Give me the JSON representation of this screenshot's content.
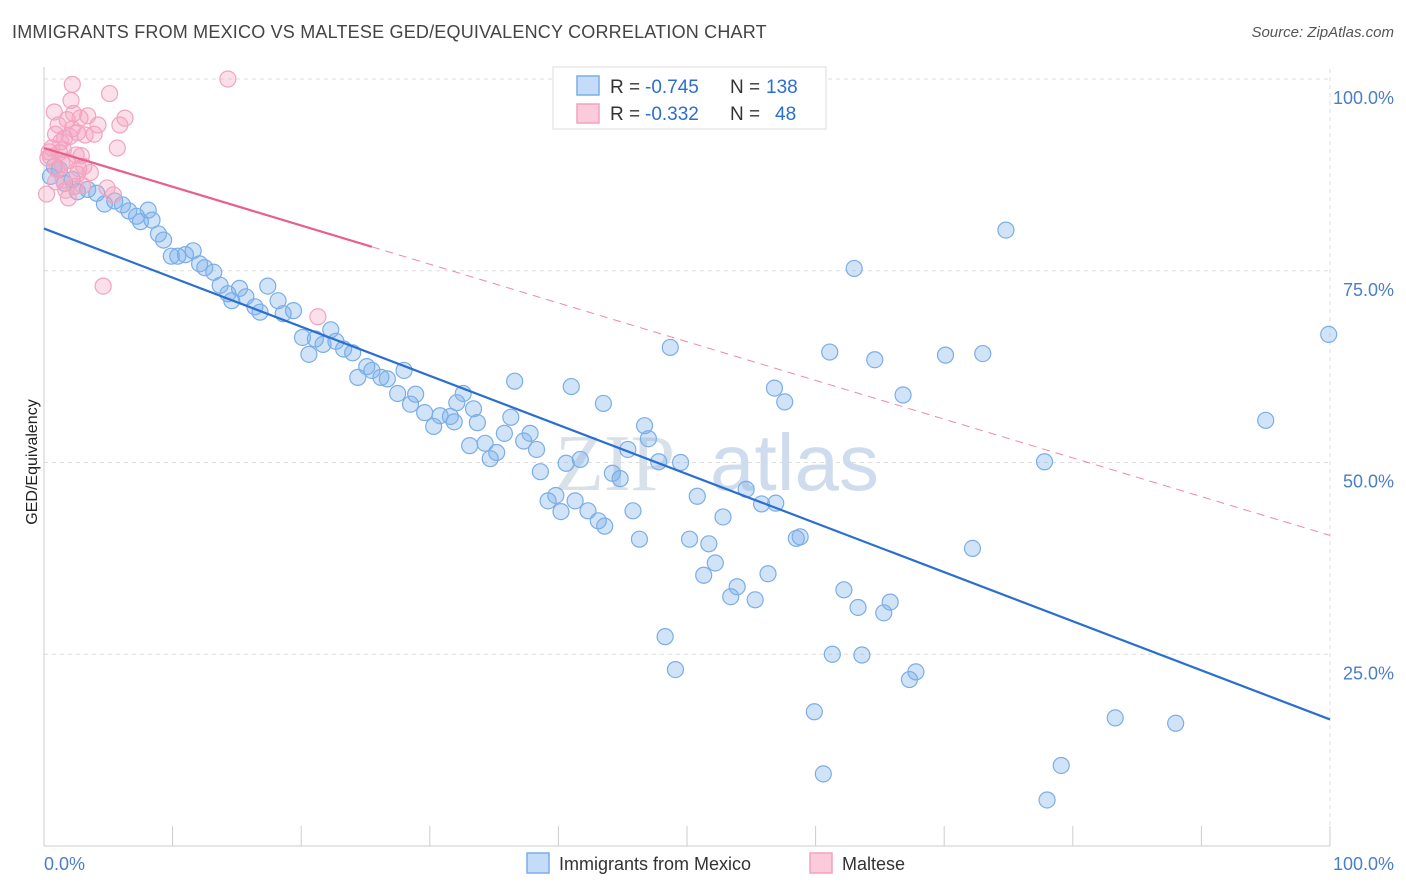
{
  "header": {
    "title": "IMMIGRANTS FROM MEXICO VS MALTESE GED/EQUIVALENCY CORRELATION CHART",
    "source": "Source: ZipAtlas.com"
  },
  "watermark": {
    "part1": "ZIP",
    "part2": "atlas"
  },
  "stats": [
    {
      "r_label": "R = ",
      "r_value": "-0.745",
      "n_label": "N = ",
      "n_value": "138"
    },
    {
      "r_label": "R = ",
      "r_value": "-0.332",
      "n_label": "N = ",
      "n_value": "48"
    }
  ],
  "chart_data": {
    "type": "scatter",
    "title": "IMMIGRANTS FROM MEXICO VS MALTESE GED/EQUIVALENCY CORRELATION CHART",
    "xlabel": "",
    "ylabel": "GED/Equivalency",
    "xlim": [
      0,
      100
    ],
    "ylim": [
      0,
      100
    ],
    "x_tick_labels": [
      "0.0%",
      "100.0%"
    ],
    "y_ticks": [
      25,
      50,
      75,
      100
    ],
    "y_tick_labels": [
      "25.0%",
      "50.0%",
      "75.0%",
      "100.0%"
    ],
    "grid": true,
    "legend_position": "bottom-center",
    "series": [
      {
        "name": "Immigrants from Mexico",
        "color": "#7aaee8",
        "line_color": "#2a6fd0",
        "trend": {
          "x0": 0,
          "y0": 80.5,
          "x1": 100,
          "y1": 16.5,
          "dashed_from": null
        },
        "points": [
          [
            0.5,
            87.3
          ],
          [
            0.8,
            88.6
          ],
          [
            1.2,
            88.2
          ],
          [
            1.6,
            86.4
          ],
          [
            2.2,
            86.9
          ],
          [
            2.6,
            85.3
          ],
          [
            3.4,
            85.6
          ],
          [
            4.1,
            85.1
          ],
          [
            4.7,
            83.7
          ],
          [
            5.5,
            84.1
          ],
          [
            6.1,
            83.6
          ],
          [
            6.6,
            82.8
          ],
          [
            7.2,
            82.1
          ],
          [
            7.5,
            81.4
          ],
          [
            8.1,
            82.9
          ],
          [
            8.4,
            81.6
          ],
          [
            8.9,
            79.8
          ],
          [
            9.3,
            79.0
          ],
          [
            9.9,
            76.9
          ],
          [
            10.4,
            76.9
          ],
          [
            11.0,
            77.1
          ],
          [
            11.6,
            77.6
          ],
          [
            12.1,
            75.9
          ],
          [
            12.5,
            75.4
          ],
          [
            13.2,
            74.8
          ],
          [
            13.7,
            73.1
          ],
          [
            14.3,
            72.0
          ],
          [
            14.6,
            71.1
          ],
          [
            15.2,
            72.7
          ],
          [
            15.7,
            71.6
          ],
          [
            16.4,
            70.3
          ],
          [
            16.8,
            69.6
          ],
          [
            17.4,
            73.0
          ],
          [
            18.2,
            71.1
          ],
          [
            18.6,
            69.4
          ],
          [
            19.4,
            69.8
          ],
          [
            20.1,
            66.3
          ],
          [
            20.6,
            64.1
          ],
          [
            21.1,
            66.1
          ],
          [
            21.7,
            65.4
          ],
          [
            22.3,
            67.3
          ],
          [
            22.7,
            65.8
          ],
          [
            23.3,
            64.8
          ],
          [
            24.0,
            64.3
          ],
          [
            24.4,
            61.1
          ],
          [
            25.1,
            62.5
          ],
          [
            25.5,
            62.0
          ],
          [
            26.2,
            61.1
          ],
          [
            26.7,
            60.9
          ],
          [
            27.5,
            59.0
          ],
          [
            28.0,
            62.0
          ],
          [
            28.5,
            57.6
          ],
          [
            28.9,
            58.9
          ],
          [
            29.6,
            56.5
          ],
          [
            30.3,
            54.7
          ],
          [
            30.8,
            56.1
          ],
          [
            31.6,
            56.0
          ],
          [
            32.1,
            57.8
          ],
          [
            32.6,
            59.0
          ],
          [
            33.1,
            52.2
          ],
          [
            33.7,
            55.2
          ],
          [
            34.3,
            52.5
          ],
          [
            35.2,
            51.3
          ],
          [
            35.8,
            53.8
          ],
          [
            36.3,
            55.9
          ],
          [
            37.3,
            52.8
          ],
          [
            37.8,
            53.8
          ],
          [
            38.3,
            51.7
          ],
          [
            38.6,
            48.8
          ],
          [
            39.2,
            45.0
          ],
          [
            39.8,
            45.7
          ],
          [
            40.2,
            43.6
          ],
          [
            40.6,
            49.9
          ],
          [
            41.3,
            45.0
          ],
          [
            41.7,
            50.4
          ],
          [
            42.3,
            43.7
          ],
          [
            43.1,
            42.4
          ],
          [
            43.6,
            41.7
          ],
          [
            44.2,
            48.6
          ],
          [
            44.8,
            47.9
          ],
          [
            45.4,
            51.7
          ],
          [
            45.8,
            43.7
          ],
          [
            46.3,
            40.0
          ],
          [
            46.7,
            54.8
          ],
          [
            47.0,
            53.1
          ],
          [
            47.8,
            50.1
          ],
          [
            48.7,
            65.0
          ],
          [
            49.5,
            50.0
          ],
          [
            50.2,
            40.0
          ],
          [
            50.8,
            45.6
          ],
          [
            51.3,
            35.3
          ],
          [
            51.7,
            39.4
          ],
          [
            52.2,
            36.9
          ],
          [
            52.8,
            42.9
          ],
          [
            53.4,
            32.5
          ],
          [
            53.9,
            33.8
          ],
          [
            54.6,
            46.5
          ],
          [
            55.3,
            32.1
          ],
          [
            55.8,
            44.6
          ],
          [
            56.3,
            35.5
          ],
          [
            56.9,
            44.7
          ],
          [
            57.6,
            57.9
          ],
          [
            58.5,
            40.1
          ],
          [
            48.3,
            27.3
          ],
          [
            49.1,
            23.0
          ],
          [
            59.9,
            17.5
          ],
          [
            60.6,
            9.4
          ],
          [
            61.3,
            25.0
          ],
          [
            62.2,
            33.4
          ],
          [
            63.3,
            31.1
          ],
          [
            63.6,
            24.9
          ],
          [
            64.6,
            63.4
          ],
          [
            65.3,
            30.4
          ],
          [
            66.8,
            58.8
          ],
          [
            67.3,
            21.7
          ],
          [
            67.8,
            22.7
          ],
          [
            70.1,
            64.0
          ],
          [
            72.2,
            38.8
          ],
          [
            73.0,
            64.2
          ],
          [
            74.8,
            80.3
          ],
          [
            77.8,
            50.1
          ],
          [
            78.0,
            6.0
          ],
          [
            79.1,
            10.5
          ],
          [
            83.3,
            16.7
          ],
          [
            88.0,
            16.0
          ],
          [
            95.0,
            55.5
          ],
          [
            99.9,
            66.7
          ],
          [
            65.8,
            31.8
          ],
          [
            63.0,
            75.3
          ],
          [
            61.1,
            64.4
          ],
          [
            56.8,
            59.7
          ],
          [
            36.6,
            60.6
          ],
          [
            41.0,
            59.9
          ],
          [
            43.5,
            57.7
          ],
          [
            58.8,
            40.3
          ],
          [
            33.4,
            57.0
          ],
          [
            34.7,
            50.5
          ],
          [
            31.9,
            55.3
          ]
        ]
      },
      {
        "name": "Maltese",
        "color": "#f3a3bf",
        "line_color": "#e8608a",
        "trend": {
          "x0": 0,
          "y0": 91.0,
          "x1": 100,
          "y1": 40.5,
          "dashed_from": 25.5
        },
        "points": [
          [
            0.2,
            85.0
          ],
          [
            0.3,
            89.7
          ],
          [
            0.4,
            90.5
          ],
          [
            0.5,
            89.9
          ],
          [
            0.6,
            91.0
          ],
          [
            0.8,
            95.7
          ],
          [
            0.9,
            92.8
          ],
          [
            1.0,
            88.2
          ],
          [
            1.1,
            94.0
          ],
          [
            1.2,
            90.4
          ],
          [
            1.3,
            91.8
          ],
          [
            1.4,
            89.0
          ],
          [
            1.5,
            86.8
          ],
          [
            1.6,
            92.3
          ],
          [
            1.7,
            85.5
          ],
          [
            1.8,
            94.7
          ],
          [
            1.9,
            84.5
          ],
          [
            2.0,
            92.5
          ],
          [
            2.1,
            97.2
          ],
          [
            2.2,
            99.3
          ],
          [
            2.3,
            95.5
          ],
          [
            2.4,
            86.0
          ],
          [
            2.5,
            90.1
          ],
          [
            2.6,
            87.6
          ],
          [
            2.7,
            88.3
          ],
          [
            2.8,
            94.9
          ],
          [
            2.9,
            90.0
          ],
          [
            3.0,
            86.1
          ],
          [
            3.2,
            92.7
          ],
          [
            3.4,
            95.2
          ],
          [
            3.6,
            87.8
          ],
          [
            3.9,
            92.8
          ],
          [
            4.2,
            94.0
          ],
          [
            4.6,
            73.0
          ],
          [
            4.9,
            85.8
          ],
          [
            5.1,
            98.1
          ],
          [
            5.4,
            84.9
          ],
          [
            5.7,
            91.0
          ],
          [
            5.9,
            94.0
          ],
          [
            6.3,
            94.9
          ],
          [
            14.3,
            100.0
          ],
          [
            21.3,
            69.0
          ],
          [
            1.5,
            90.8
          ],
          [
            2.2,
            93.5
          ],
          [
            0.9,
            86.6
          ],
          [
            1.8,
            89.3
          ],
          [
            2.6,
            93.0
          ],
          [
            3.1,
            88.6
          ]
        ]
      }
    ]
  },
  "legend": {
    "items": [
      {
        "label": "Immigrants from Mexico",
        "color": "#7aaee8"
      },
      {
        "label": "Maltese",
        "color": "#f3a3bf"
      }
    ]
  }
}
